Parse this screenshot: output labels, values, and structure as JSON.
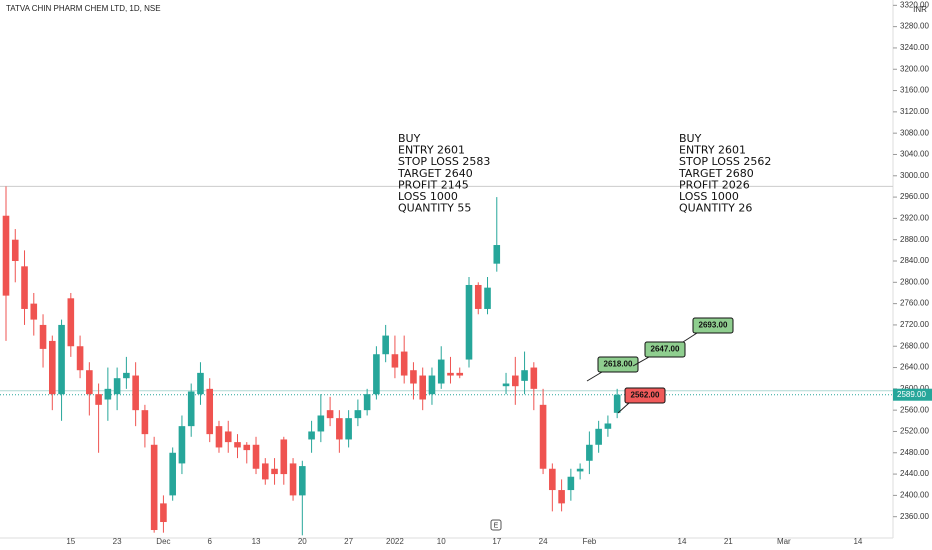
{
  "chart_data": {
    "type": "candlestick",
    "title": "TATVA CHIN PHARM CHEM LTD, 1D, NSE",
    "currency": "INR",
    "event_marker": "E",
    "up_color": "#26a69a",
    "down_color": "#ef5350",
    "ylim": [
      2320,
      3330
    ],
    "yticks": [
      {
        "value": 2360,
        "label": "2360.00"
      },
      {
        "value": 2400,
        "label": "2400.00"
      },
      {
        "value": 2440,
        "label": "2440.00"
      },
      {
        "value": 2480,
        "label": "2480.00"
      },
      {
        "value": 2520,
        "label": "2520.00"
      },
      {
        "value": 2560,
        "label": "2560.00"
      },
      {
        "value": 2600,
        "label": "2600.00"
      },
      {
        "value": 2640,
        "label": "2640.00"
      },
      {
        "value": 2680,
        "label": "2680.00"
      },
      {
        "value": 2720,
        "label": "2720.00"
      },
      {
        "value": 2760,
        "label": "2760.00"
      },
      {
        "value": 2800,
        "label": "2800.00"
      },
      {
        "value": 2840,
        "label": "2840.00"
      },
      {
        "value": 2880,
        "label": "2880.00"
      },
      {
        "value": 2920,
        "label": "2920.00"
      },
      {
        "value": 2960,
        "label": "2960.00"
      },
      {
        "value": 3000,
        "label": "3000.00"
      },
      {
        "value": 3040,
        "label": "3040.00"
      },
      {
        "value": 3080,
        "label": "3080.00"
      },
      {
        "value": 3120,
        "label": "3120.00"
      },
      {
        "value": 3160,
        "label": "3160.00"
      },
      {
        "value": 3200,
        "label": "3200.00"
      },
      {
        "value": 3240,
        "label": "3240.00"
      },
      {
        "value": 3280,
        "label": "3280.00"
      },
      {
        "value": 3320,
        "label": "3320.00"
      }
    ],
    "categories": [
      null,
      null,
      null,
      null,
      null,
      null,
      null,
      "15",
      null,
      null,
      null,
      null,
      "23",
      null,
      null,
      null,
      null,
      "Dec",
      null,
      null,
      null,
      null,
      "6",
      null,
      null,
      null,
      null,
      "13",
      null,
      null,
      null,
      null,
      "20",
      null,
      null,
      null,
      null,
      "27",
      null,
      null,
      null,
      null,
      "2022",
      null,
      null,
      null,
      null,
      "10",
      null,
      null,
      null,
      null,
      null,
      "17",
      null,
      null,
      null,
      null,
      "24",
      null,
      null,
      null,
      null,
      "Feb",
      null,
      null,
      null,
      null,
      null,
      null,
      null,
      null,
      null,
      "14",
      null,
      null,
      null,
      null,
      "21",
      null,
      null,
      null,
      null,
      null,
      "Mar",
      null,
      null,
      null,
      null,
      null,
      null,
      null,
      "14",
      null,
      null,
      null
    ],
    "open": [
      2925,
      2880,
      2830,
      2760,
      2720,
      2690,
      2590,
      2770,
      2680,
      2635,
      2590,
      2580,
      2590,
      2620,
      2625,
      2560,
      2495,
      2385,
      2400,
      2460,
      2530,
      2590,
      2600,
      2530,
      2520,
      2500,
      2495,
      2495,
      2460,
      2450,
      2505,
      2460,
      2400,
      2505,
      2520,
      2560,
      2545,
      2505,
      2545,
      2560,
      2590,
      2665,
      2665,
      2670,
      2635,
      2625,
      2590,
      2610,
      2630,
      2630,
      2655,
      2795,
      2750,
      2835,
      2605,
      2625,
      2615,
      2640,
      2570,
      2450,
      2410,
      2410,
      2445,
      2465,
      2495,
      2525,
      2555,
      null,
      null,
      null,
      null,
      null,
      null,
      null,
      null,
      null,
      null,
      null,
      null,
      null,
      null,
      null,
      null,
      null,
      null,
      null,
      null,
      null,
      null,
      null,
      null,
      null,
      null,
      null,
      null,
      null
    ],
    "high": [
      2980,
      2900,
      2860,
      2780,
      2740,
      2700,
      2730,
      2780,
      2700,
      2650,
      2610,
      2640,
      2640,
      2660,
      2650,
      2570,
      2510,
      2400,
      2490,
      2550,
      2610,
      2650,
      2620,
      2540,
      2540,
      2515,
      2500,
      2510,
      2470,
      2470,
      2510,
      2470,
      2465,
      2540,
      2590,
      2585,
      2560,
      2560,
      2580,
      2600,
      2680,
      2720,
      2700,
      2700,
      2650,
      2640,
      2640,
      2680,
      2660,
      2640,
      2810,
      2800,
      2810,
      2960,
      2630,
      2660,
      2670,
      2650,
      2600,
      2460,
      2430,
      2450,
      2460,
      2520,
      2540,
      2550,
      2600,
      null,
      null,
      null,
      null,
      null,
      null,
      null,
      null,
      null,
      null,
      null,
      null,
      null,
      null,
      null,
      null,
      null,
      null,
      null,
      null,
      null,
      null,
      null,
      null,
      null,
      null,
      null,
      null,
      null
    ],
    "low": [
      2690,
      2800,
      2720,
      2700,
      2640,
      2560,
      2540,
      2660,
      2620,
      2550,
      2480,
      2540,
      2560,
      2600,
      2530,
      2490,
      2330,
      2330,
      2390,
      2440,
      2510,
      2570,
      2500,
      2480,
      2480,
      2470,
      2460,
      2440,
      2420,
      2420,
      2420,
      2390,
      2325,
      2480,
      2500,
      2530,
      2480,
      2490,
      2530,
      2550,
      2580,
      2650,
      2620,
      2610,
      2580,
      2560,
      2570,
      2600,
      2610,
      2620,
      2640,
      2740,
      2740,
      2820,
      2590,
      2570,
      2590,
      2560,
      2440,
      2370,
      2370,
      2390,
      2430,
      2440,
      2480,
      2510,
      2545,
      null,
      null,
      null,
      null,
      null,
      null,
      null,
      null,
      null,
      null,
      null,
      null,
      null,
      null,
      null,
      null,
      null,
      null,
      null,
      null,
      null,
      null,
      null,
      null,
      null,
      null,
      null,
      null,
      null
    ],
    "close": [
      2775,
      2840,
      2750,
      2730,
      2675,
      2590,
      2720,
      2680,
      2635,
      2590,
      2570,
      2600,
      2620,
      2630,
      2560,
      2515,
      2335,
      2350,
      2480,
      2530,
      2595,
      2630,
      2515,
      2490,
      2500,
      2490,
      2485,
      2450,
      2430,
      2440,
      2440,
      2400,
      2455,
      2520,
      2550,
      2545,
      2505,
      2545,
      2560,
      2590,
      2665,
      2700,
      2640,
      2625,
      2610,
      2580,
      2625,
      2655,
      2625,
      2625,
      2795,
      2750,
      2790,
      2870,
      2610,
      2605,
      2635,
      2600,
      2450,
      2410,
      2385,
      2435,
      2450,
      2495,
      2525,
      2535,
      2589,
      null,
      null,
      null,
      null,
      null,
      null,
      null,
      null,
      null,
      null,
      null,
      null,
      null,
      null,
      null,
      null,
      null,
      null,
      null,
      null,
      null,
      null,
      null,
      null,
      null,
      null,
      null,
      null,
      null
    ],
    "last_price": {
      "value": 2589,
      "label": "2589.00"
    },
    "hline": 2980,
    "annotations": [
      [
        "BUY",
        "ENTRY 2601",
        "STOP LOSS 2583",
        "TARGET 2640",
        "PROFIT 2145",
        "LOSS 1000",
        "QUANTITY 55"
      ],
      [
        "BUY",
        "ENTRY 2601",
        "STOP LOSS 2562",
        "TARGET 2680",
        "PROFIT 2026",
        "LOSS 1000",
        "QUANTITY 26"
      ]
    ],
    "callouts": [
      {
        "value": 2618,
        "label": "2618.00",
        "color": "#8fce8f"
      },
      {
        "value": 2647,
        "label": "2647.00",
        "color": "#8fce8f"
      },
      {
        "value": 2693,
        "label": "2693.00",
        "color": "#8fce8f"
      },
      {
        "value": 2562,
        "label": "2562.00",
        "color": "#f05a5a"
      }
    ]
  }
}
